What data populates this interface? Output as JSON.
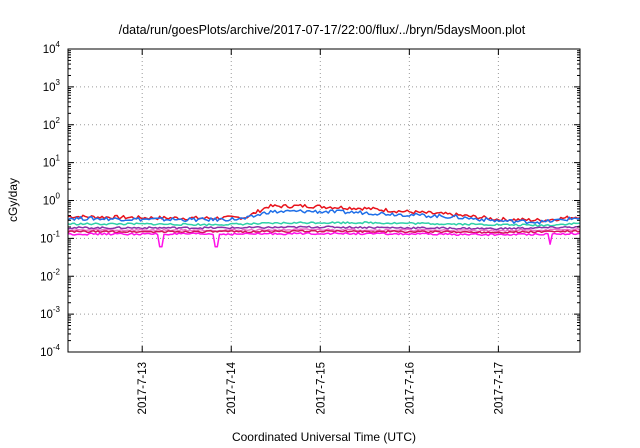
{
  "chart_data": {
    "type": "line",
    "title": "/data/run/goesPlots/archive/2017-07-17/22:00/flux/../bryn/5daysMoon.plot",
    "xlabel": "Coordinated Universal Time (UTC)",
    "ylabel": "cGy/day",
    "yscale": "log",
    "ylim": [
      0.0001,
      10000
    ],
    "yticks": [
      {
        "base": "10",
        "exp": "-4",
        "value": 0.0001
      },
      {
        "base": "10",
        "exp": "-3",
        "value": 0.001
      },
      {
        "base": "10",
        "exp": "-2",
        "value": 0.01
      },
      {
        "base": "10",
        "exp": "-1",
        "value": 0.1
      },
      {
        "base": "10",
        "exp": "0",
        "value": 1
      },
      {
        "base": "10",
        "exp": "1",
        "value": 10
      },
      {
        "base": "10",
        "exp": "2",
        "value": 100
      },
      {
        "base": "10",
        "exp": "3",
        "value": 1000
      },
      {
        "base": "10",
        "exp": "4",
        "value": 10000
      }
    ],
    "xlim": [
      "2017-07-12T04:00",
      "2017-07-17T22:00"
    ],
    "xticks": [
      "2017-7-13",
      "2017-7-14",
      "2017-7-15",
      "2017-7-16",
      "2017-7-17"
    ],
    "grid": true,
    "legend": "none",
    "series": [
      {
        "color": "#e8121b",
        "x": [
          "2017-07-12T04:00",
          "2017-07-13T00:00",
          "2017-07-13T18:00",
          "2017-07-14T04:00",
          "2017-07-14T10:00",
          "2017-07-14T20:00",
          "2017-07-15T12:00",
          "2017-07-16T00:00",
          "2017-07-16T12:00",
          "2017-07-17T00:00",
          "2017-07-17T12:00",
          "2017-07-17T22:00"
        ],
        "y": [
          0.38,
          0.35,
          0.34,
          0.36,
          0.7,
          0.72,
          0.62,
          0.5,
          0.42,
          0.32,
          0.3,
          0.38
        ]
      },
      {
        "color": "#1f6fe8",
        "x": [
          "2017-07-12T04:00",
          "2017-07-13T00:00",
          "2017-07-13T18:00",
          "2017-07-14T04:00",
          "2017-07-14T10:00",
          "2017-07-14T20:00",
          "2017-07-15T12:00",
          "2017-07-16T00:00",
          "2017-07-16T12:00",
          "2017-07-17T00:00",
          "2017-07-17T12:00",
          "2017-07-17T22:00"
        ],
        "y": [
          0.34,
          0.32,
          0.31,
          0.33,
          0.5,
          0.52,
          0.48,
          0.42,
          0.37,
          0.29,
          0.27,
          0.35
        ]
      },
      {
        "color": "#2fd0a8",
        "x": [
          "2017-07-12T04:00",
          "2017-07-13T00:00",
          "2017-07-13T18:00",
          "2017-07-14T04:00",
          "2017-07-14T20:00",
          "2017-07-15T12:00",
          "2017-07-16T12:00",
          "2017-07-17T12:00",
          "2017-07-17T22:00"
        ],
        "y": [
          0.24,
          0.24,
          0.23,
          0.24,
          0.26,
          0.26,
          0.24,
          0.22,
          0.25
        ]
      },
      {
        "color": "#8b2fa8",
        "x": [
          "2017-07-12T04:00",
          "2017-07-13T00:00",
          "2017-07-14T00:00",
          "2017-07-15T00:00",
          "2017-07-16T00:00",
          "2017-07-17T00:00",
          "2017-07-17T22:00"
        ],
        "y": [
          0.19,
          0.19,
          0.19,
          0.2,
          0.19,
          0.18,
          0.2
        ]
      },
      {
        "color": "#f06ec8",
        "x": [
          "2017-07-12T04:00",
          "2017-07-13T00:00",
          "2017-07-14T00:00",
          "2017-07-15T00:00",
          "2017-07-16T00:00",
          "2017-07-17T00:00",
          "2017-07-17T22:00"
        ],
        "y": [
          0.165,
          0.165,
          0.165,
          0.17,
          0.165,
          0.16,
          0.17
        ]
      },
      {
        "color": "#d4145a",
        "x": [
          "2017-07-12T04:00",
          "2017-07-13T00:00",
          "2017-07-14T00:00",
          "2017-07-15T00:00",
          "2017-07-16T00:00",
          "2017-07-17T00:00",
          "2017-07-17T22:00"
        ],
        "y": [
          0.15,
          0.15,
          0.15,
          0.155,
          0.15,
          0.145,
          0.155
        ]
      },
      {
        "color": "#ff10e8",
        "x": [
          "2017-07-12T04:00",
          "2017-07-13T00:00",
          "2017-07-14T00:00",
          "2017-07-15T00:00",
          "2017-07-16T00:00",
          "2017-07-17T00:00",
          "2017-07-17T22:00"
        ],
        "y": [
          0.13,
          0.13,
          0.13,
          0.135,
          0.13,
          0.125,
          0.135
        ],
        "dips": [
          {
            "x": "2017-07-13T05:00",
            "y": 0.06
          },
          {
            "x": "2017-07-13T20:00",
            "y": 0.06
          },
          {
            "x": "2017-07-17T14:00",
            "y": 0.07
          }
        ]
      }
    ]
  }
}
